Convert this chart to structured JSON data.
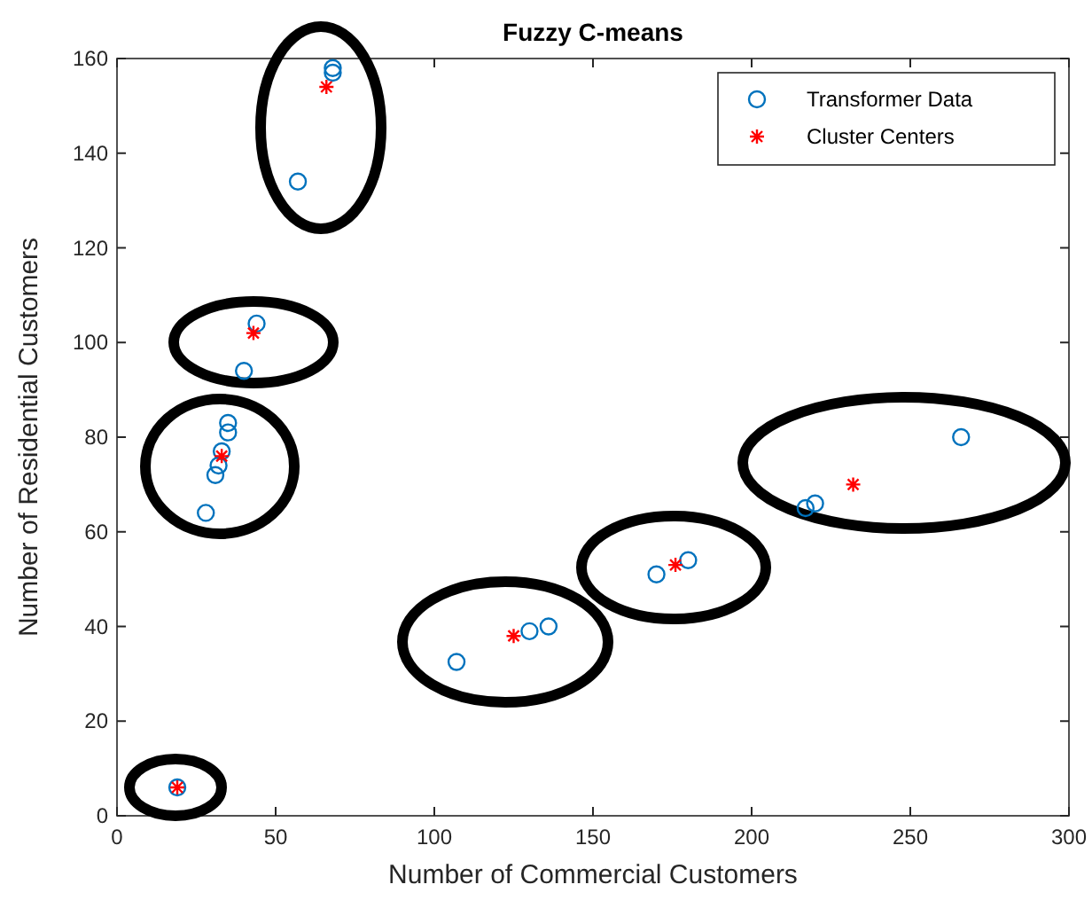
{
  "chart_data": {
    "type": "scatter",
    "title": "Fuzzy C-means",
    "xlabel": "Number of Commercial Customers",
    "ylabel": "Number of Residential Customers",
    "xlim": [
      0,
      300
    ],
    "xticks": [
      0,
      50,
      100,
      150,
      200,
      250,
      300
    ],
    "ylim": [
      0,
      160
    ],
    "yticks": [
      0,
      20,
      40,
      60,
      80,
      100,
      120,
      140,
      160
    ],
    "grid": false,
    "legend": "top right",
    "series": [
      {
        "name": "Transformer Data",
        "color": "#0072bd",
        "marker": "circle",
        "x": [
          19,
          57,
          68,
          68,
          44,
          40,
          35,
          35,
          33,
          32,
          31,
          28,
          107,
          130,
          136,
          170,
          180,
          217,
          220,
          266
        ],
        "values": [
          6,
          134,
          158,
          157,
          104,
          94,
          83,
          81,
          77,
          74,
          72,
          64,
          32.5,
          39,
          40,
          51,
          54,
          65,
          66,
          80
        ]
      },
      {
        "name": "Cluster Centers",
        "color": "#ff0000",
        "marker": "cross",
        "x": [
          19,
          66,
          43,
          33,
          125,
          176,
          232
        ],
        "values": [
          6,
          154,
          102,
          76,
          38,
          53,
          70
        ]
      }
    ]
  }
}
